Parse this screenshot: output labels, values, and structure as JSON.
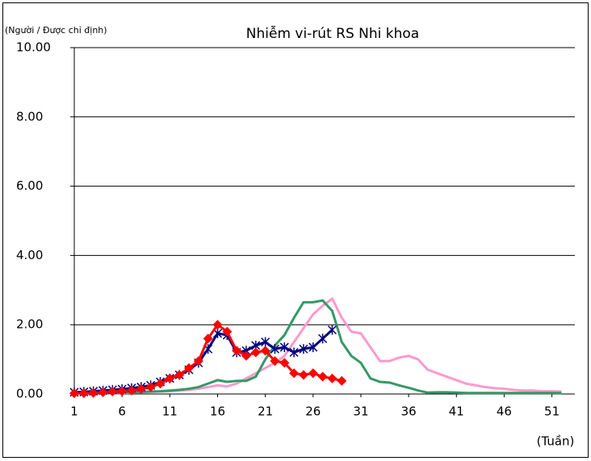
{
  "chart_data": {
    "type": "line",
    "title": "Nhiễm vi-rút RS Nhi khoa",
    "y_label": "(Người / Được chỉ định)",
    "x_label": "(Tuần)",
    "x": [
      1,
      2,
      3,
      4,
      5,
      6,
      7,
      8,
      9,
      10,
      11,
      12,
      13,
      14,
      15,
      16,
      17,
      18,
      19,
      20,
      21,
      22,
      23,
      24,
      25,
      26,
      27,
      28,
      29,
      30,
      31,
      32,
      33,
      34,
      35,
      36,
      37,
      38,
      39,
      40,
      41,
      42,
      43,
      44,
      45,
      46,
      47,
      48,
      49,
      50,
      51,
      52
    ],
    "xlim": [
      1,
      53.4
    ],
    "xticks": [
      1,
      6,
      11,
      16,
      21,
      26,
      31,
      36,
      41,
      46,
      51
    ],
    "ylim": [
      0,
      10
    ],
    "yticks": [
      {
        "value": 0,
        "label": "0.00"
      },
      {
        "value": 2,
        "label": "2.00"
      },
      {
        "value": 4,
        "label": "4.00"
      },
      {
        "value": 6,
        "label": "6.00"
      },
      {
        "value": 8,
        "label": "8.00"
      },
      {
        "value": 10,
        "label": "10.00"
      }
    ],
    "grid": true,
    "series": [
      {
        "color": "#ff99cc",
        "marker": "none",
        "values": [
          0.02,
          0.02,
          0.02,
          0.02,
          0.03,
          0.03,
          0.04,
          0.05,
          0.06,
          0.07,
          0.08,
          0.1,
          0.12,
          0.15,
          0.2,
          0.25,
          0.22,
          0.3,
          0.45,
          0.6,
          0.75,
          0.9,
          1.1,
          1.5,
          1.9,
          2.3,
          2.55,
          2.75,
          2.2,
          1.8,
          1.75,
          1.35,
          0.95,
          0.95,
          1.05,
          1.1,
          1.0,
          0.7,
          0.6,
          0.5,
          0.4,
          0.3,
          0.25,
          0.2,
          0.17,
          0.15,
          0.12,
          0.1,
          0.1,
          0.08,
          0.08,
          0.07
        ]
      },
      {
        "color": "#339966",
        "marker": "none",
        "values": [
          0.02,
          0.02,
          0.02,
          0.03,
          0.03,
          0.04,
          0.05,
          0.06,
          0.07,
          0.08,
          0.1,
          0.12,
          0.15,
          0.2,
          0.3,
          0.4,
          0.35,
          0.38,
          0.38,
          0.5,
          1.0,
          1.4,
          1.7,
          2.2,
          2.65,
          2.65,
          2.7,
          2.4,
          1.5,
          1.1,
          0.9,
          0.45,
          0.35,
          0.33,
          0.25,
          0.18,
          0.1,
          0.04,
          0.05,
          0.05,
          0.04,
          0.03,
          0.03,
          0.03,
          0.03,
          0.03,
          0.03,
          0.03,
          0.03,
          0.03,
          0.03,
          0.03
        ]
      },
      {
        "color": "#000080",
        "marker": "cross",
        "values": [
          0.05,
          0.06,
          0.08,
          0.1,
          0.12,
          0.14,
          0.17,
          0.2,
          0.25,
          0.35,
          0.45,
          0.55,
          0.7,
          0.9,
          1.3,
          1.75,
          1.7,
          1.2,
          1.25,
          1.4,
          1.5,
          1.3,
          1.35,
          1.2,
          1.3,
          1.35,
          1.6,
          1.85,
          null,
          null,
          null,
          null,
          null,
          null,
          null,
          null,
          null,
          null,
          null,
          null,
          null,
          null,
          null,
          null,
          null,
          null,
          null,
          null,
          null,
          null,
          null,
          null
        ]
      },
      {
        "color": "#ff0000",
        "marker": "diamond",
        "values": [
          0.02,
          0.02,
          0.03,
          0.05,
          0.07,
          0.08,
          0.1,
          0.15,
          0.2,
          0.3,
          0.45,
          0.55,
          0.75,
          0.95,
          1.6,
          2.0,
          1.8,
          1.25,
          1.1,
          1.2,
          1.25,
          0.95,
          0.9,
          0.6,
          0.55,
          0.6,
          0.5,
          0.45,
          0.38,
          null,
          null,
          null,
          null,
          null,
          null,
          null,
          null,
          null,
          null,
          null,
          null,
          null,
          null,
          null,
          null,
          null,
          null,
          null,
          null,
          null,
          null,
          null
        ]
      }
    ]
  }
}
